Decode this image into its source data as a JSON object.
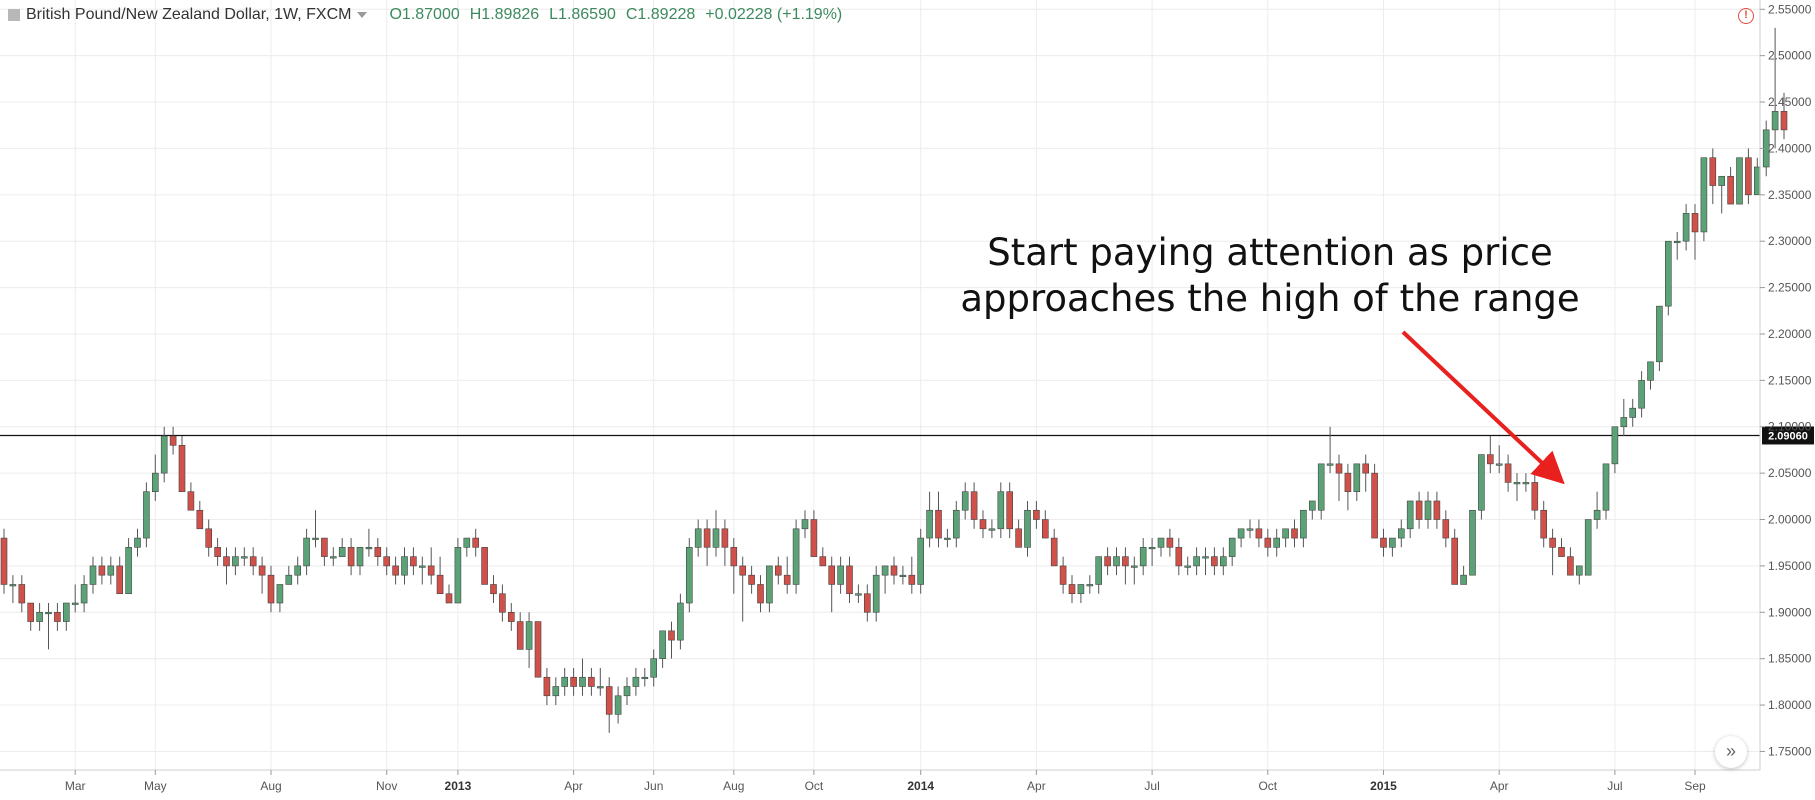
{
  "header": {
    "symbol_title": "British Pound/New Zealand Dollar, 1W, FXCM",
    "open": "O1.87000",
    "high": "H1.89826",
    "low": "L1.86590",
    "close": "C1.89228",
    "change": "+0.02228 (+1.19%)"
  },
  "annotation": {
    "line1": "Start paying attention as price",
    "line2": "approaches the high of the range"
  },
  "colors": {
    "up": "#5ba377",
    "down": "#d0504a",
    "arrow": "#e8201e",
    "grid": "#ececec"
  },
  "chart_data": {
    "type": "candlestick",
    "ylim": [
      1.73,
      2.56
    ],
    "y_ticks": [
      "1.75000",
      "1.80000",
      "1.85000",
      "1.90000",
      "1.95000",
      "2.00000",
      "2.05000",
      "2.10000",
      "2.15000",
      "2.20000",
      "2.25000",
      "2.30000",
      "2.35000",
      "2.40000",
      "2.45000",
      "2.50000",
      "2.55000"
    ],
    "x_ticks": [
      {
        "label": "Mar",
        "bold": false
      },
      {
        "label": "May",
        "bold": false
      },
      {
        "label": "Aug",
        "bold": false
      },
      {
        "label": "Nov",
        "bold": false
      },
      {
        "label": "2013",
        "bold": true
      },
      {
        "label": "Apr",
        "bold": false
      },
      {
        "label": "Jun",
        "bold": false
      },
      {
        "label": "Aug",
        "bold": false
      },
      {
        "label": "Oct",
        "bold": false
      },
      {
        "label": "2014",
        "bold": true
      },
      {
        "label": "Apr",
        "bold": false
      },
      {
        "label": "Jul",
        "bold": false
      },
      {
        "label": "Oct",
        "bold": false
      },
      {
        "label": "2015",
        "bold": true
      },
      {
        "label": "Apr",
        "bold": false
      },
      {
        "label": "Jul",
        "bold": false
      },
      {
        "label": "Sep",
        "bold": false
      }
    ],
    "x_tick_index": [
      8,
      17,
      30,
      43,
      51,
      64,
      73,
      82,
      91,
      103,
      116,
      129,
      142,
      155,
      168,
      181,
      190
    ],
    "horizontal_line": {
      "value": 2.0906,
      "label": "2.09060"
    },
    "candles": [
      [
        1.98,
        1.99,
        1.92,
        1.93
      ],
      [
        1.93,
        1.94,
        1.91,
        1.93
      ],
      [
        1.93,
        1.94,
        1.9,
        1.91
      ],
      [
        1.91,
        1.91,
        1.88,
        1.89
      ],
      [
        1.89,
        1.91,
        1.88,
        1.9
      ],
      [
        1.9,
        1.91,
        1.86,
        1.9
      ],
      [
        1.9,
        1.91,
        1.88,
        1.89
      ],
      [
        1.89,
        1.91,
        1.88,
        1.91
      ],
      [
        1.91,
        1.93,
        1.9,
        1.91
      ],
      [
        1.91,
        1.94,
        1.9,
        1.93
      ],
      [
        1.93,
        1.96,
        1.92,
        1.95
      ],
      [
        1.95,
        1.96,
        1.93,
        1.94
      ],
      [
        1.94,
        1.96,
        1.93,
        1.95
      ],
      [
        1.95,
        1.96,
        1.92,
        1.92
      ],
      [
        1.92,
        1.98,
        1.92,
        1.97
      ],
      [
        1.97,
        1.99,
        1.96,
        1.98
      ],
      [
        1.98,
        2.04,
        1.97,
        2.03
      ],
      [
        2.03,
        2.07,
        2.02,
        2.05
      ],
      [
        2.05,
        2.1,
        2.04,
        2.09
      ],
      [
        2.09,
        2.1,
        2.07,
        2.08
      ],
      [
        2.08,
        2.09,
        2.03,
        2.03
      ],
      [
        2.03,
        2.04,
        2.01,
        2.01
      ],
      [
        2.01,
        2.02,
        1.99,
        1.99
      ],
      [
        1.99,
        2.0,
        1.96,
        1.97
      ],
      [
        1.97,
        1.98,
        1.95,
        1.96
      ],
      [
        1.96,
        1.97,
        1.93,
        1.95
      ],
      [
        1.95,
        1.97,
        1.94,
        1.96
      ],
      [
        1.96,
        1.97,
        1.95,
        1.96
      ],
      [
        1.96,
        1.97,
        1.94,
        1.95
      ],
      [
        1.95,
        1.96,
        1.92,
        1.94
      ],
      [
        1.94,
        1.95,
        1.9,
        1.91
      ],
      [
        1.91,
        1.93,
        1.9,
        1.93
      ],
      [
        1.93,
        1.95,
        1.93,
        1.94
      ],
      [
        1.94,
        1.96,
        1.93,
        1.95
      ],
      [
        1.95,
        1.99,
        1.94,
        1.98
      ],
      [
        1.98,
        2.01,
        1.97,
        1.98
      ],
      [
        1.98,
        1.98,
        1.95,
        1.96
      ],
      [
        1.96,
        1.97,
        1.95,
        1.96
      ],
      [
        1.96,
        1.98,
        1.96,
        1.97
      ],
      [
        1.97,
        1.98,
        1.94,
        1.95
      ],
      [
        1.95,
        1.97,
        1.94,
        1.97
      ],
      [
        1.97,
        1.99,
        1.96,
        1.97
      ],
      [
        1.97,
        1.98,
        1.95,
        1.96
      ],
      [
        1.96,
        1.97,
        1.94,
        1.95
      ],
      [
        1.95,
        1.96,
        1.93,
        1.94
      ],
      [
        1.94,
        1.97,
        1.93,
        1.96
      ],
      [
        1.96,
        1.97,
        1.94,
        1.95
      ],
      [
        1.95,
        1.96,
        1.93,
        1.95
      ],
      [
        1.95,
        1.97,
        1.93,
        1.94
      ],
      [
        1.94,
        1.96,
        1.92,
        1.92
      ],
      [
        1.92,
        1.93,
        1.91,
        1.91
      ],
      [
        1.91,
        1.98,
        1.91,
        1.97
      ],
      [
        1.97,
        1.98,
        1.96,
        1.98
      ],
      [
        1.98,
        1.99,
        1.96,
        1.97
      ],
      [
        1.97,
        1.97,
        1.93,
        1.93
      ],
      [
        1.93,
        1.94,
        1.91,
        1.92
      ],
      [
        1.92,
        1.93,
        1.89,
        1.9
      ],
      [
        1.9,
        1.91,
        1.88,
        1.89
      ],
      [
        1.89,
        1.9,
        1.86,
        1.86
      ],
      [
        1.86,
        1.9,
        1.84,
        1.89
      ],
      [
        1.89,
        1.89,
        1.83,
        1.83
      ],
      [
        1.83,
        1.84,
        1.8,
        1.81
      ],
      [
        1.81,
        1.83,
        1.8,
        1.82
      ],
      [
        1.82,
        1.84,
        1.81,
        1.83
      ],
      [
        1.83,
        1.84,
        1.81,
        1.82
      ],
      [
        1.82,
        1.85,
        1.81,
        1.83
      ],
      [
        1.83,
        1.84,
        1.81,
        1.82
      ],
      [
        1.82,
        1.84,
        1.81,
        1.82
      ],
      [
        1.82,
        1.83,
        1.77,
        1.79
      ],
      [
        1.79,
        1.82,
        1.78,
        1.81
      ],
      [
        1.81,
        1.83,
        1.8,
        1.82
      ],
      [
        1.82,
        1.84,
        1.81,
        1.83
      ],
      [
        1.83,
        1.84,
        1.82,
        1.83
      ],
      [
        1.83,
        1.86,
        1.82,
        1.85
      ],
      [
        1.85,
        1.88,
        1.84,
        1.88
      ],
      [
        1.88,
        1.89,
        1.85,
        1.87
      ],
      [
        1.87,
        1.92,
        1.86,
        1.91
      ],
      [
        1.91,
        1.98,
        1.9,
        1.97
      ],
      [
        1.97,
        2.0,
        1.96,
        1.99
      ],
      [
        1.99,
        2.0,
        1.95,
        1.97
      ],
      [
        1.97,
        2.01,
        1.96,
        1.99
      ],
      [
        1.99,
        2.0,
        1.95,
        1.97
      ],
      [
        1.97,
        1.98,
        1.92,
        1.95
      ],
      [
        1.95,
        1.96,
        1.89,
        1.94
      ],
      [
        1.94,
        1.95,
        1.92,
        1.93
      ],
      [
        1.93,
        1.94,
        1.9,
        1.91
      ],
      [
        1.91,
        1.95,
        1.9,
        1.95
      ],
      [
        1.95,
        1.96,
        1.93,
        1.94
      ],
      [
        1.94,
        1.96,
        1.92,
        1.93
      ],
      [
        1.93,
        2.0,
        1.92,
        1.99
      ],
      [
        1.99,
        2.01,
        1.98,
        2.0
      ],
      [
        2.0,
        2.01,
        1.96,
        1.96
      ],
      [
        1.96,
        1.97,
        1.95,
        1.95
      ],
      [
        1.95,
        1.96,
        1.9,
        1.93
      ],
      [
        1.93,
        1.96,
        1.92,
        1.95
      ],
      [
        1.95,
        1.96,
        1.91,
        1.92
      ],
      [
        1.92,
        1.93,
        1.91,
        1.92
      ],
      [
        1.92,
        1.93,
        1.89,
        1.9
      ],
      [
        1.9,
        1.95,
        1.89,
        1.94
      ],
      [
        1.94,
        1.95,
        1.92,
        1.95
      ],
      [
        1.95,
        1.96,
        1.93,
        1.94
      ],
      [
        1.94,
        1.95,
        1.93,
        1.94
      ],
      [
        1.94,
        1.96,
        1.92,
        1.93
      ],
      [
        1.93,
        1.99,
        1.92,
        1.98
      ],
      [
        1.98,
        2.03,
        1.97,
        2.01
      ],
      [
        2.01,
        2.03,
        1.97,
        1.98
      ],
      [
        1.98,
        1.99,
        1.97,
        1.98
      ],
      [
        1.98,
        2.02,
        1.97,
        2.01
      ],
      [
        2.01,
        2.04,
        2.0,
        2.03
      ],
      [
        2.03,
        2.04,
        1.99,
        2.0
      ],
      [
        2.0,
        2.01,
        1.98,
        1.99
      ],
      [
        1.99,
        2.0,
        1.98,
        1.99
      ],
      [
        1.99,
        2.04,
        1.98,
        2.03
      ],
      [
        2.03,
        2.04,
        1.98,
        1.99
      ],
      [
        1.99,
        2.0,
        1.97,
        1.97
      ],
      [
        1.97,
        2.02,
        1.96,
        2.01
      ],
      [
        2.01,
        2.02,
        1.99,
        2.0
      ],
      [
        2.0,
        2.01,
        1.98,
        1.98
      ],
      [
        1.98,
        1.99,
        1.95,
        1.95
      ],
      [
        1.95,
        1.96,
        1.92,
        1.93
      ],
      [
        1.93,
        1.94,
        1.91,
        1.92
      ],
      [
        1.92,
        1.93,
        1.91,
        1.93
      ],
      [
        1.93,
        1.94,
        1.92,
        1.93
      ],
      [
        1.93,
        1.96,
        1.92,
        1.96
      ],
      [
        1.96,
        1.97,
        1.94,
        1.95
      ],
      [
        1.95,
        1.97,
        1.94,
        1.96
      ],
      [
        1.96,
        1.97,
        1.93,
        1.95
      ],
      [
        1.95,
        1.96,
        1.93,
        1.95
      ],
      [
        1.95,
        1.98,
        1.94,
        1.97
      ],
      [
        1.97,
        1.98,
        1.95,
        1.97
      ],
      [
        1.97,
        1.98,
        1.96,
        1.98
      ],
      [
        1.98,
        1.99,
        1.96,
        1.97
      ],
      [
        1.97,
        1.98,
        1.94,
        1.95
      ],
      [
        1.95,
        1.96,
        1.94,
        1.95
      ],
      [
        1.95,
        1.97,
        1.94,
        1.96
      ],
      [
        1.96,
        1.97,
        1.94,
        1.96
      ],
      [
        1.96,
        1.97,
        1.94,
        1.95
      ],
      [
        1.95,
        1.97,
        1.94,
        1.96
      ],
      [
        1.96,
        1.98,
        1.95,
        1.98
      ],
      [
        1.98,
        1.99,
        1.97,
        1.99
      ],
      [
        1.99,
        2.0,
        1.98,
        1.99
      ],
      [
        1.99,
        2.0,
        1.97,
        1.98
      ],
      [
        1.98,
        1.99,
        1.96,
        1.97
      ],
      [
        1.97,
        1.99,
        1.96,
        1.98
      ],
      [
        1.98,
        1.99,
        1.97,
        1.99
      ],
      [
        1.99,
        2.0,
        1.97,
        1.98
      ],
      [
        1.98,
        2.01,
        1.97,
        2.01
      ],
      [
        2.01,
        2.02,
        2.0,
        2.02
      ],
      [
        2.01,
        2.06,
        2.0,
        2.06
      ],
      [
        2.06,
        2.1,
        2.05,
        2.06
      ],
      [
        2.06,
        2.07,
        2.02,
        2.05
      ],
      [
        2.05,
        2.06,
        2.01,
        2.03
      ],
      [
        2.03,
        2.06,
        2.02,
        2.06
      ],
      [
        2.06,
        2.07,
        2.03,
        2.05
      ],
      [
        2.05,
        2.06,
        1.98,
        1.98
      ],
      [
        1.98,
        1.99,
        1.96,
        1.97
      ],
      [
        1.97,
        1.98,
        1.96,
        1.98
      ],
      [
        1.98,
        2.0,
        1.97,
        1.99
      ],
      [
        1.99,
        2.02,
        1.98,
        2.02
      ],
      [
        2.02,
        2.03,
        1.99,
        2.0
      ],
      [
        2.0,
        2.03,
        1.99,
        2.02
      ],
      [
        2.02,
        2.03,
        1.99,
        2.0
      ],
      [
        2.0,
        2.01,
        1.97,
        1.98
      ],
      [
        1.98,
        1.99,
        1.93,
        1.93
      ],
      [
        1.93,
        1.95,
        1.93,
        1.94
      ],
      [
        1.94,
        2.01,
        1.94,
        2.01
      ],
      [
        2.01,
        2.07,
        2.0,
        2.07
      ],
      [
        2.07,
        2.09,
        2.05,
        2.06
      ],
      [
        2.06,
        2.08,
        2.05,
        2.06
      ],
      [
        2.06,
        2.07,
        2.03,
        2.04
      ],
      [
        2.04,
        2.05,
        2.02,
        2.04
      ],
      [
        2.04,
        2.05,
        2.03,
        2.04
      ],
      [
        2.04,
        2.05,
        2.0,
        2.01
      ],
      [
        2.01,
        2.02,
        1.97,
        1.98
      ],
      [
        1.98,
        1.99,
        1.94,
        1.97
      ],
      [
        1.97,
        1.98,
        1.96,
        1.96
      ],
      [
        1.96,
        1.97,
        1.94,
        1.94
      ],
      [
        1.94,
        1.95,
        1.93,
        1.95
      ],
      [
        1.94,
        2.0,
        1.94,
        2.0
      ],
      [
        2.0,
        2.03,
        1.99,
        2.01
      ],
      [
        2.01,
        2.06,
        2.0,
        2.06
      ],
      [
        2.06,
        2.1,
        2.05,
        2.1
      ],
      [
        2.1,
        2.13,
        2.09,
        2.11
      ],
      [
        2.11,
        2.13,
        2.1,
        2.12
      ],
      [
        2.12,
        2.16,
        2.11,
        2.15
      ],
      [
        2.15,
        2.17,
        2.14,
        2.17
      ],
      [
        2.17,
        2.23,
        2.16,
        2.23
      ],
      [
        2.23,
        2.3,
        2.22,
        2.3
      ],
      [
        2.3,
        2.31,
        2.28,
        2.3
      ],
      [
        2.3,
        2.34,
        2.29,
        2.33
      ],
      [
        2.33,
        2.34,
        2.28,
        2.31
      ],
      [
        2.31,
        2.39,
        2.3,
        2.39
      ],
      [
        2.39,
        2.4,
        2.34,
        2.36
      ],
      [
        2.36,
        2.37,
        2.33,
        2.37
      ],
      [
        2.37,
        2.38,
        2.34,
        2.34
      ],
      [
        2.34,
        2.39,
        2.34,
        2.39
      ],
      [
        2.39,
        2.4,
        2.34,
        2.35
      ],
      [
        2.35,
        2.39,
        2.35,
        2.38
      ],
      [
        2.38,
        2.43,
        2.37,
        2.42
      ],
      [
        2.42,
        2.53,
        2.4,
        2.44
      ],
      [
        2.44,
        2.46,
        2.41,
        2.42
      ]
    ]
  }
}
